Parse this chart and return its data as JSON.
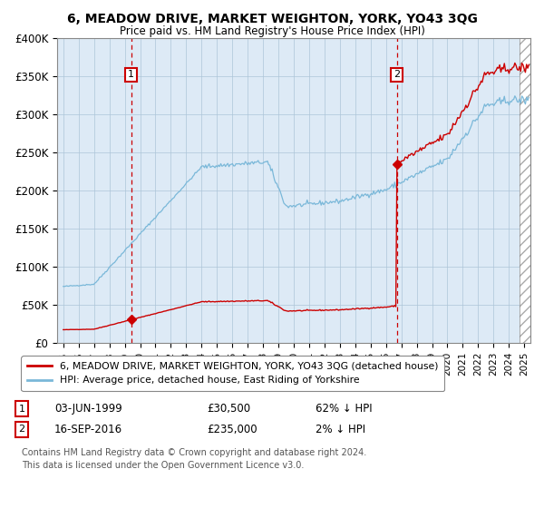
{
  "title": "6, MEADOW DRIVE, MARKET WEIGHTON, YORK, YO43 3QG",
  "subtitle": "Price paid vs. HM Land Registry's House Price Index (HPI)",
  "ylim": [
    0,
    400000
  ],
  "yticks": [
    0,
    50000,
    100000,
    150000,
    200000,
    250000,
    300000,
    350000,
    400000
  ],
  "ytick_labels": [
    "£0",
    "£50K",
    "£100K",
    "£150K",
    "£200K",
    "£250K",
    "£300K",
    "£350K",
    "£400K"
  ],
  "xlim_start": 1994.6,
  "xlim_end": 2025.4,
  "sale1_date": 1999.42,
  "sale1_price": 30500,
  "sale2_date": 2016.71,
  "sale2_price": 235000,
  "hpi_color": "#7ab8d9",
  "price_color": "#cc0000",
  "bg_color": "#ddeaf6",
  "hatch_color": "#cccccc",
  "grid_color": "#adc5d8",
  "legend_label1": "6, MEADOW DRIVE, MARKET WEIGHTON, YORK, YO43 3QG (detached house)",
  "legend_label2": "HPI: Average price, detached house, East Riding of Yorkshire",
  "row1_num": "1",
  "row1_date": "03-JUN-1999",
  "row1_price": "£30,500",
  "row1_hpi": "62% ↓ HPI",
  "row2_num": "2",
  "row2_date": "16-SEP-2016",
  "row2_price": "£235,000",
  "row2_hpi": "2% ↓ HPI",
  "footer_line1": "Contains HM Land Registry data © Crown copyright and database right 2024.",
  "footer_line2": "This data is licensed under the Open Government Licence v3.0."
}
